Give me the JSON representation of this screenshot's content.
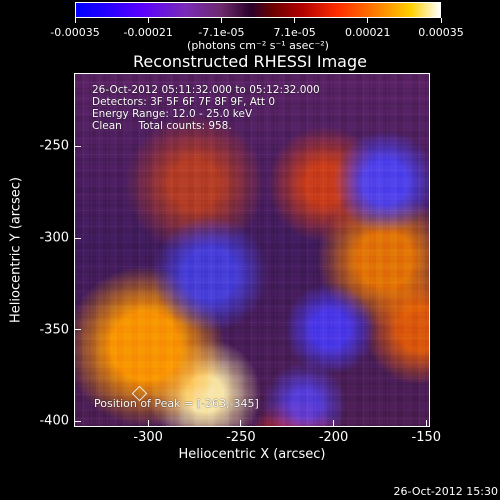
{
  "colorbar": {
    "tick_labels": [
      "-0.00035",
      "-0.00021",
      "-7.1e-05",
      "7.1e-05",
      "0.00021",
      "0.00035"
    ],
    "units": "(photons cm⁻² s⁻¹ asec⁻²)"
  },
  "chart_data": {
    "type": "heatmap",
    "title": "Reconstructed RHESSI Image",
    "xlabel": "Heliocentric X (arcsec)",
    "ylabel": "Heliocentric Y (arcsec)",
    "xlim": [
      -340,
      -148
    ],
    "ylim": [
      -403,
      -210
    ],
    "x_ticks": [
      -300,
      -250,
      -200,
      -150
    ],
    "y_ticks": [
      -250,
      -300,
      -350,
      -400
    ],
    "colorbar_range": [
      -0.00035,
      0.00035
    ]
  },
  "annotation_lines": [
    "26-Oct-2012 05:11:32.000 to 05:12:32.000",
    "Detectors: 3F 5F 6F 7F 8F 9F, Att 0",
    "Energy Range: 12.0 - 25.0 keV",
    "Clean     Total counts: 958."
  ],
  "peak_label": "Position of Peak = [-263,-345]",
  "timestamp": "26-Oct-2012 15:30"
}
